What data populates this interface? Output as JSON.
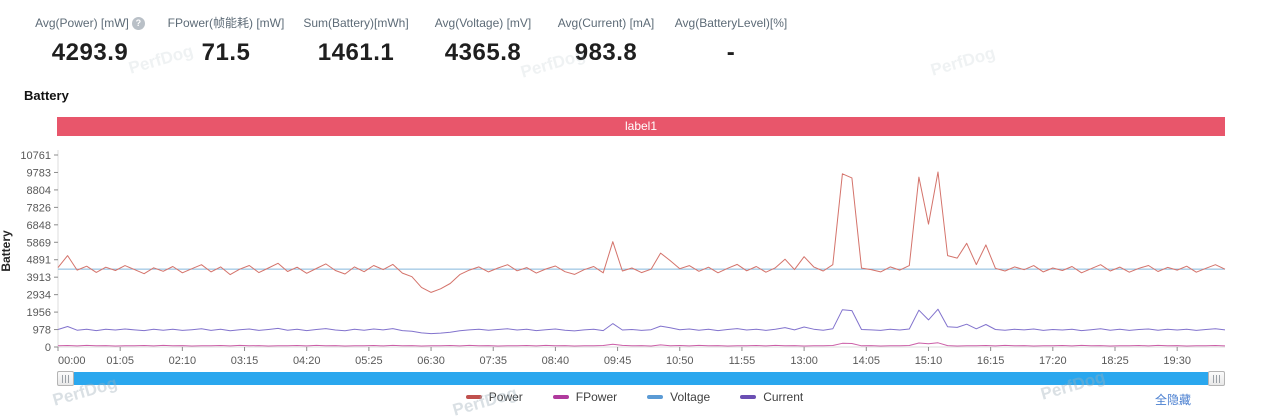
{
  "stats": {
    "help_glyph": "?",
    "cards": [
      {
        "label": "Avg(Power) [mW]",
        "value": "4293.9"
      },
      {
        "label": "FPower(帧能耗) [mW]",
        "value": "71.5"
      },
      {
        "label": "Sum(Battery)[mWh]",
        "value": "1461.1"
      },
      {
        "label": "Avg(Voltage) [mV]",
        "value": "4365.8"
      },
      {
        "label": "Avg(Current) [mA]",
        "value": "983.8"
      },
      {
        "label": "Avg(BatteryLevel)[%]",
        "value": "-"
      }
    ]
  },
  "section": {
    "title": "Battery",
    "banner_label": "label1",
    "banner_color": "#e8566b"
  },
  "scrollbar": {
    "color": "#2aa7ee"
  },
  "legend": {
    "items": [
      {
        "name": "Power",
        "color": "#c0504d"
      },
      {
        "name": "FPower",
        "color": "#b03a9d"
      },
      {
        "name": "Voltage",
        "color": "#5b9bd5"
      },
      {
        "name": "Current",
        "color": "#6b4fb3"
      }
    ],
    "hide_all": "全隐藏"
  },
  "watermark": "PerfDog",
  "chart_data": {
    "type": "line",
    "title": "Battery",
    "xlabel": "",
    "ylabel": "Battery",
    "ylim": [
      0,
      10761
    ],
    "grid": false,
    "legend_position": "bottom",
    "y_ticks": [
      0,
      978,
      1956,
      2934,
      3913,
      4891,
      5869,
      6848,
      7826,
      8804,
      9783,
      10761
    ],
    "x_tick_seconds": [
      0,
      65,
      130,
      195,
      260,
      325,
      390,
      455,
      520,
      585,
      650,
      715,
      780,
      845,
      910,
      975,
      1040,
      1105,
      1170
    ],
    "x_tick_labels": [
      "00:00",
      "01:05",
      "02:10",
      "03:15",
      "04:20",
      "05:25",
      "06:30",
      "07:35",
      "08:40",
      "09:45",
      "10:50",
      "11:55",
      "13:00",
      "14:05",
      "15:10",
      "16:15",
      "17:20",
      "18:25",
      "19:30"
    ],
    "x_total_seconds": 1220,
    "sample_step_s": 10,
    "series": [
      {
        "name": "Power",
        "unit": "mW",
        "color": "#d4736b",
        "values": [
          4450,
          5120,
          4310,
          4530,
          4180,
          4470,
          4290,
          4560,
          4340,
          4110,
          4440,
          4240,
          4510,
          4160,
          4390,
          4610,
          4210,
          4490,
          4060,
          4360,
          4570,
          4170,
          4430,
          4690,
          4230,
          4470,
          4130,
          4400,
          4660,
          4290,
          4090,
          4490,
          4220,
          4570,
          4340,
          4630,
          4140,
          3940,
          3340,
          3060,
          3260,
          3560,
          4060,
          4310,
          4490,
          4210,
          4430,
          4610,
          4270,
          4450,
          4140,
          4370,
          4540,
          4220,
          4070,
          4330,
          4510,
          4160,
          5900,
          4260,
          4430,
          4170,
          4360,
          5260,
          4840,
          4390,
          4560,
          4240,
          4470,
          4160,
          4410,
          4630,
          4270,
          4510,
          4190,
          4440,
          4920,
          4340,
          5060,
          4490,
          4260,
          4610,
          9710,
          9480,
          4420,
          4340,
          4210,
          4490,
          4310,
          4560,
          9520,
          6890,
          9810,
          5120,
          4980,
          5810,
          4620,
          5720,
          4410,
          4260,
          4490,
          4330,
          4560,
          4210,
          4430,
          4290,
          4510,
          4160,
          4390,
          4610,
          4260,
          4480,
          4190,
          4410,
          4570,
          4230,
          4460,
          4310,
          4530,
          4190,
          4410,
          4610,
          4360
        ]
      },
      {
        "name": "FPower",
        "unit": "mW",
        "color": "#cc5fa8",
        "values": [
          70,
          85,
          60,
          90,
          65,
          80,
          55,
          75,
          70,
          85,
          60,
          90,
          65,
          80,
          55,
          75,
          70,
          85,
          60,
          90,
          65,
          80,
          55,
          75,
          70,
          85,
          60,
          90,
          65,
          80,
          55,
          75,
          70,
          85,
          60,
          90,
          65,
          80,
          55,
          75,
          70,
          85,
          60,
          90,
          65,
          80,
          55,
          75,
          70,
          85,
          60,
          90,
          65,
          80,
          55,
          75,
          70,
          85,
          150,
          90,
          65,
          80,
          55,
          120,
          70,
          85,
          60,
          90,
          65,
          80,
          55,
          75,
          70,
          85,
          60,
          90,
          65,
          80,
          55,
          75,
          70,
          85,
          210,
          195,
          65,
          80,
          55,
          75,
          70,
          85,
          225,
          180,
          235,
          80,
          55,
          75,
          70,
          85,
          60,
          90,
          65,
          80,
          55,
          75,
          70,
          85,
          60,
          90,
          65,
          80,
          55,
          75,
          70,
          85,
          60,
          90,
          65,
          80,
          55,
          75,
          70,
          85,
          60
        ]
      },
      {
        "name": "Voltage",
        "unit": "mV",
        "color": "#85b8dc",
        "constant": 4366
      },
      {
        "name": "Current",
        "unit": "mA",
        "color": "#8273cd",
        "values": [
          980,
          1150,
          940,
          1000,
          920,
          990,
          950,
          1010,
          960,
          920,
          990,
          940,
          1000,
          930,
          970,
          1020,
          930,
          1000,
          910,
          970,
          1010,
          930,
          980,
          1040,
          940,
          990,
          920,
          980,
          1030,
          950,
          910,
          1000,
          940,
          1010,
          960,
          1030,
          920,
          880,
          790,
          750,
          780,
          830,
          910,
          960,
          1000,
          940,
          980,
          1020,
          950,
          990,
          920,
          970,
          1010,
          940,
          900,
          960,
          1000,
          920,
          1310,
          950,
          980,
          930,
          970,
          1170,
          1080,
          970,
          1010,
          940,
          990,
          920,
          980,
          1030,
          950,
          1000,
          930,
          990,
          1090,
          960,
          1120,
          1000,
          940,
          1020,
          2090,
          2040,
          980,
          960,
          930,
          1000,
          950,
          1010,
          2060,
          1520,
          2120,
          1130,
          1100,
          1280,
          1020,
          1260,
          980,
          940,
          990,
          960,
          1010,
          930,
          980,
          950,
          1000,
          920,
          970,
          1020,
          940,
          990,
          930,
          980,
          1010,
          940,
          990,
          950,
          1000,
          930,
          980,
          1020,
          960
        ]
      }
    ]
  }
}
